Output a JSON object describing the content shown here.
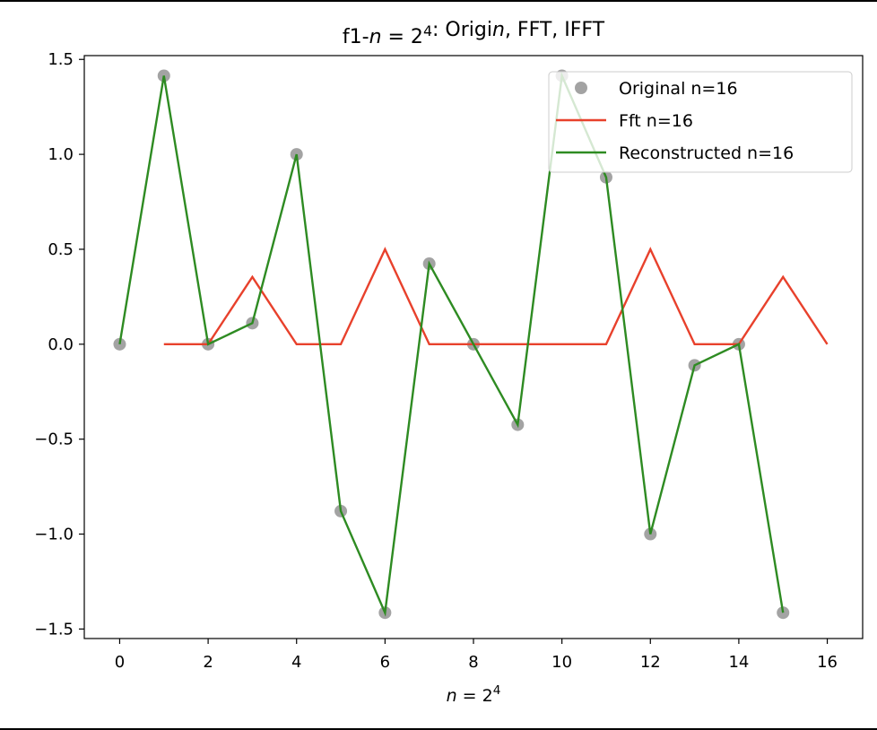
{
  "chart_data": {
    "type": "line",
    "title": "f1-n = 2⁴: Origin, FFT, IFFT",
    "xlabel": "n = 2⁴",
    "ylabel": "",
    "xlim": [
      -0.8,
      16.8
    ],
    "ylim": [
      -1.55,
      1.52
    ],
    "xticks": [
      0,
      2,
      4,
      6,
      8,
      10,
      12,
      14,
      16
    ],
    "xtick_labels": [
      "0",
      "2",
      "4",
      "6",
      "8",
      "10",
      "12",
      "14",
      "16"
    ],
    "yticks": [
      1.5,
      1.0,
      0.5,
      0.0,
      -0.5,
      -1.0,
      -1.5
    ],
    "ytick_labels": [
      "1.5",
      "1.0",
      "0.5",
      "0.0",
      "−0.5",
      "−1.0",
      "−1.5"
    ],
    "grid": false,
    "legend_position": "top-right",
    "series": [
      {
        "name": "Original n=16",
        "kind": "scatter",
        "color": "#808080",
        "x": [
          0,
          1,
          2,
          3,
          4,
          5,
          6,
          7,
          8,
          9,
          10,
          11,
          12,
          13,
          14,
          15
        ],
        "y": [
          0.0,
          1.414,
          0.0,
          0.111,
          1.0,
          -0.879,
          -1.414,
          0.424,
          0.0,
          -0.424,
          1.414,
          0.879,
          -1.0,
          -0.111,
          0.0,
          -1.414
        ]
      },
      {
        "name": "Fft n=16",
        "kind": "line",
        "color": "#e8412c",
        "x": [
          1,
          2,
          3,
          4,
          5,
          6,
          7,
          8,
          9,
          10,
          11,
          12,
          13,
          14,
          15,
          16
        ],
        "y": [
          0.0,
          0.0,
          0.354,
          0.0,
          0.0,
          0.5,
          0.0,
          0.0,
          0.0,
          0.0,
          0.0,
          0.5,
          0.0,
          0.0,
          0.354,
          0.0
        ]
      },
      {
        "name": "Reconstructed n=16",
        "kind": "line",
        "color": "#2e8b22",
        "x": [
          0,
          1,
          2,
          3,
          4,
          5,
          6,
          7,
          8,
          9,
          10,
          11,
          12,
          13,
          14,
          15
        ],
        "y": [
          0.0,
          1.414,
          0.0,
          0.111,
          1.0,
          -0.879,
          -1.414,
          0.424,
          0.0,
          -0.424,
          1.414,
          0.879,
          -1.0,
          -0.111,
          0.0,
          -1.414
        ]
      }
    ]
  }
}
